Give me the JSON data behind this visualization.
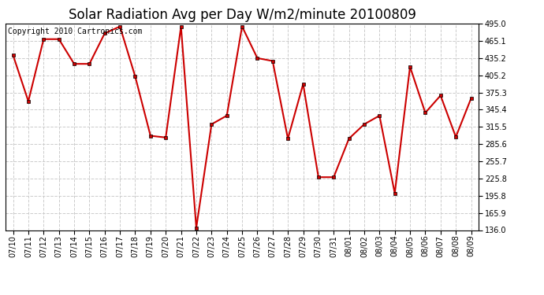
{
  "title": "Solar Radiation Avg per Day W/m2/minute 20100809",
  "copyright_text": "Copyright 2010 Cartronics.com",
  "dates": [
    "07/10",
    "07/11",
    "07/12",
    "07/13",
    "07/14",
    "07/15",
    "07/16",
    "07/17",
    "07/18",
    "07/19",
    "07/20",
    "07/21",
    "07/22",
    "07/23",
    "07/24",
    "07/25",
    "07/26",
    "07/27",
    "07/28",
    "07/29",
    "07/30",
    "07/31",
    "08/01",
    "08/02",
    "08/03",
    "08/04",
    "08/05",
    "08/06",
    "08/07",
    "08/08",
    "08/09"
  ],
  "values": [
    440,
    360,
    468,
    468,
    425,
    425,
    478,
    490,
    403,
    300,
    297,
    490,
    140,
    320,
    335,
    490,
    435,
    430,
    295,
    390,
    228,
    228,
    295,
    320,
    335,
    200,
    420,
    340,
    370,
    298,
    365
  ],
  "ylim": [
    136.0,
    495.0
  ],
  "yticks": [
    136.0,
    165.9,
    195.8,
    225.8,
    255.7,
    285.6,
    315.5,
    345.4,
    375.3,
    405.2,
    435.2,
    465.1,
    495.0
  ],
  "line_color": "#cc0000",
  "marker_color": "#000000",
  "bg_color": "#ffffff",
  "grid_color": "#cccccc",
  "title_fontsize": 12,
  "label_fontsize": 7,
  "copyright_fontsize": 7,
  "spine_color": "#000000"
}
